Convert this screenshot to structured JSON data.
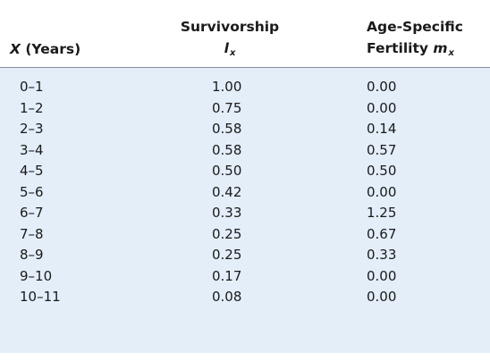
{
  "table": {
    "headers": {
      "x": {
        "var": "X",
        "rest": " (Years)"
      },
      "survivorship": {
        "line1": "Survivorship",
        "symbol": "l",
        "subscript": "x"
      },
      "fertility": {
        "line1": "Age-Specific",
        "line2": "Fertility ",
        "symbol": "m",
        "subscript": "x"
      }
    },
    "rows": [
      {
        "age": "0–1",
        "lx": "1.00",
        "mx": "0.00"
      },
      {
        "age": "1–2",
        "lx": "0.75",
        "mx": "0.00"
      },
      {
        "age": "2–3",
        "lx": "0.58",
        "mx": "0.14"
      },
      {
        "age": "3–4",
        "lx": "0.58",
        "mx": "0.57"
      },
      {
        "age": "4–5",
        "lx": "0.50",
        "mx": "0.50"
      },
      {
        "age": "5–6",
        "lx": "0.42",
        "mx": "0.00"
      },
      {
        "age": "6–7",
        "lx": "0.33",
        "mx": "1.25"
      },
      {
        "age": "7–8",
        "lx": "0.25",
        "mx": "0.67"
      },
      {
        "age": "8–9",
        "lx": "0.25",
        "mx": "0.33"
      },
      {
        "age": "9–10",
        "lx": "0.17",
        "mx": "0.00"
      },
      {
        "age": "10–11",
        "lx": "0.08",
        "mx": "0.00"
      }
    ]
  },
  "colors": {
    "body_background": "#e3eef9",
    "rule": "#8a8f96",
    "text": "#1a1a1a"
  }
}
